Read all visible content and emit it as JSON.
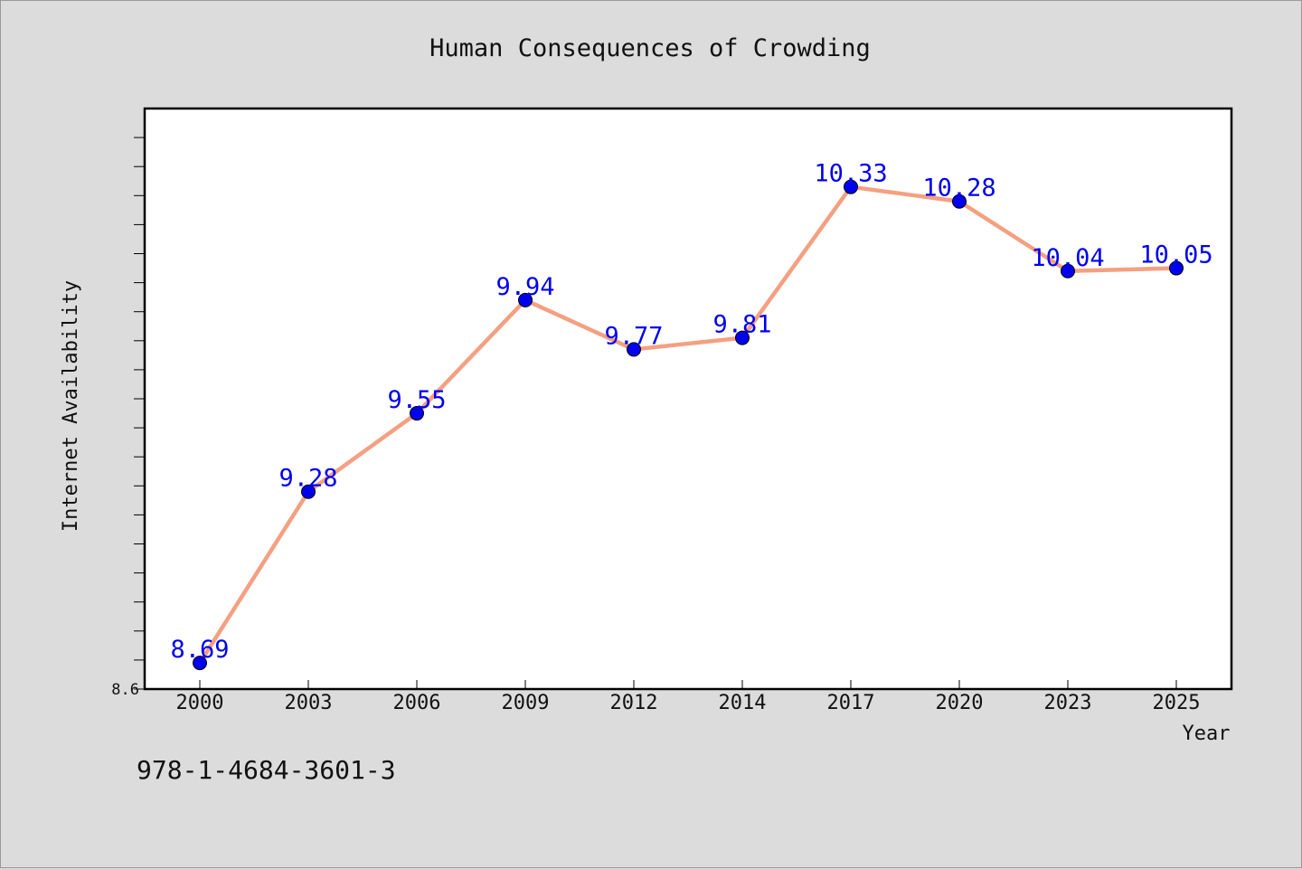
{
  "chart_data": {
    "type": "line",
    "title": "Human Consequences of Crowding",
    "xlabel": "Year",
    "ylabel": "Internet Availability",
    "categories": [
      "2000",
      "2003",
      "2006",
      "2009",
      "2012",
      "2014",
      "2017",
      "2020",
      "2023",
      "2025"
    ],
    "series": [
      {
        "values": [
          8.69,
          9.28,
          9.55,
          9.94,
          9.77,
          9.81,
          10.33,
          10.28,
          10.04,
          10.05
        ],
        "line_color": "#f4a081",
        "marker_color": "#0000ee",
        "label_color": "#0000ee"
      }
    ],
    "ylim": [
      8.6,
      10.6
    ],
    "yticks_labeled": [
      "8.6"
    ],
    "y_minor_step": 0.1,
    "grid": false,
    "legend": "none",
    "data_labels": true
  },
  "footer": {
    "isbn": "978-1-4684-3601-3"
  },
  "colors": {
    "background": "#dcdcdc",
    "plot_area": "#ffffff",
    "axes": "#000000"
  }
}
